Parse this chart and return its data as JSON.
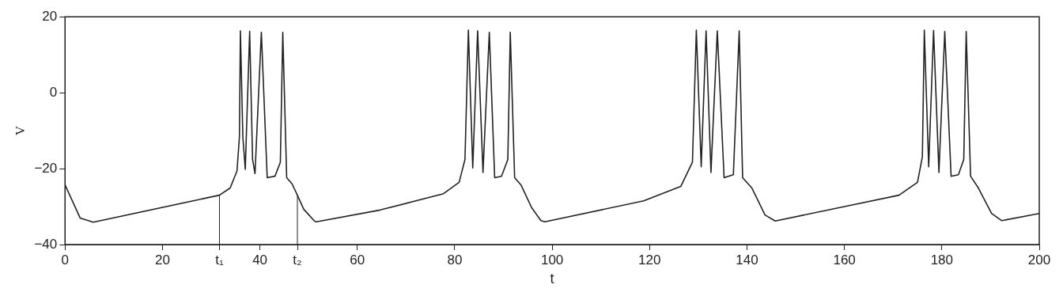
{
  "chart_data": {
    "type": "line",
    "xlabel": "t",
    "ylabel": "V",
    "xlim": [
      0,
      200
    ],
    "ylim": [
      -40,
      20
    ],
    "xticks": [
      0,
      20,
      {
        "value": 31.7,
        "label": "t₁"
      },
      40,
      {
        "value": 47.7,
        "label": "t₂"
      },
      60,
      80,
      100,
      120,
      140,
      160,
      180,
      200
    ],
    "yticks": [
      -40,
      -20,
      0,
      20
    ],
    "grid": false,
    "legend": false,
    "marker": "none",
    "line_style": "solid",
    "ref_lines": [
      {
        "axis": "x",
        "value": 31.7
      },
      {
        "axis": "x",
        "value": 47.7
      }
    ],
    "series": [
      {
        "color": "#222222",
        "x": [
          0,
          3.1,
          5.8,
          31.7,
          33.9,
          35.3,
          35.8,
          36.0,
          36.5,
          37.0,
          37.9,
          38.5,
          39.0,
          40.3,
          41.5,
          43.1,
          44.2,
          44.7,
          45.5,
          46.6,
          47.7,
          49.0,
          51.2,
          51.6,
          64.7,
          77.7,
          80.9,
          82.1,
          82.8,
          83.7,
          84.7,
          85.8,
          87.1,
          88.2,
          89.6,
          90.9,
          91.4,
          92.3,
          93.6,
          95.8,
          97.7,
          98.5,
          118.8,
          126.4,
          128.8,
          129.6,
          130.6,
          131.6,
          132.6,
          133.9,
          135.3,
          137.2,
          138.4,
          139.1,
          141.0,
          143.7,
          145.8,
          171.2,
          175.0,
          176.0,
          176.4,
          177.3,
          178.3,
          179.4,
          180.6,
          181.9,
          183.4,
          184.5,
          185.0,
          185.9,
          187.5,
          190.2,
          192.3,
          200
        ],
        "values": [
          -24.3,
          -33,
          -34.1,
          -27,
          -25.1,
          -20.6,
          -11.6,
          16.3,
          -11.6,
          -20.2,
          16.2,
          -17.6,
          -21.3,
          15.9,
          -22.4,
          -22,
          -18.3,
          15.9,
          -22.4,
          -24,
          -27,
          -30.7,
          -33.8,
          -34,
          -30.9,
          -26.6,
          -23.6,
          -17.6,
          16.5,
          -19.8,
          16.3,
          -21,
          15.9,
          -22.4,
          -22,
          -17.6,
          15.9,
          -22.4,
          -24.3,
          -30.3,
          -33.7,
          -34,
          -28.5,
          -24.7,
          -18.3,
          16.5,
          -19.5,
          16.3,
          -21,
          16.3,
          -22.4,
          -21.6,
          16.3,
          -22.4,
          -25.1,
          -32.2,
          -33.8,
          -27,
          -23.6,
          -16.9,
          16.5,
          -19.5,
          16.4,
          -21,
          16.1,
          -22,
          -21.6,
          -17.6,
          16.1,
          -22,
          -25.1,
          -31.8,
          -33.7,
          -31.8
        ]
      }
    ]
  }
}
